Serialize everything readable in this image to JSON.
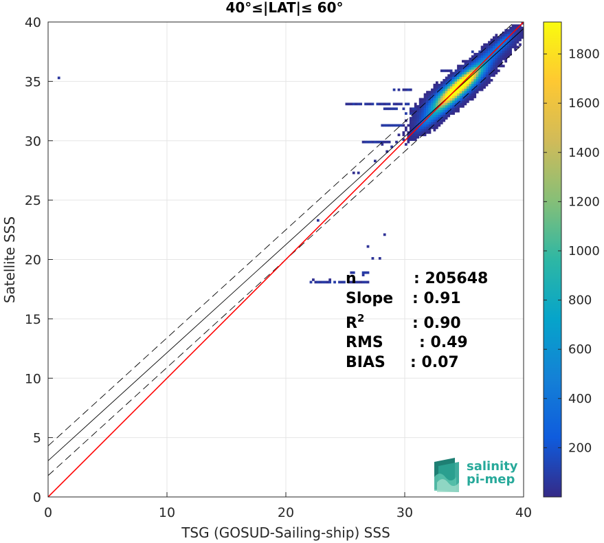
{
  "chart_data": {
    "type": "heatmap",
    "title": "40°≤|LAT|≤ 60°",
    "xlabel": "TSG (GOSUD-Sailing-ship) SSS",
    "ylabel": "Satellite SSS",
    "xlim": [
      0,
      40
    ],
    "ylim": [
      0,
      40
    ],
    "xticks": [
      "0",
      "10",
      "20",
      "30",
      "40"
    ],
    "yticks": [
      "0",
      "5",
      "10",
      "15",
      "20",
      "25",
      "30",
      "35",
      "40"
    ],
    "grid": true,
    "colorbar": {
      "range": [
        0,
        1930
      ],
      "ticks": [
        "200",
        "400",
        "600",
        "800",
        "1000",
        "1200",
        "1400",
        "1600",
        "1800"
      ],
      "colormap": "parula"
    },
    "lines": [
      {
        "kind": "one-to-one",
        "color": "#ff0000",
        "style": "solid",
        "points": [
          [
            0,
            0
          ],
          [
            40,
            40
          ]
        ]
      },
      {
        "kind": "regression",
        "color": "#000000",
        "style": "solid",
        "points": [
          [
            0,
            3.05
          ],
          [
            40,
            39.45
          ]
        ]
      },
      {
        "kind": "regression-upper",
        "color": "#000000",
        "style": "dashed",
        "points": [
          [
            0,
            4.3
          ],
          [
            40,
            40.7
          ]
        ]
      },
      {
        "kind": "regression-lower",
        "color": "#000000",
        "style": "dashed",
        "points": [
          [
            0,
            1.8
          ],
          [
            40,
            38.2
          ]
        ]
      }
    ],
    "stats": [
      {
        "label": "n",
        "value": ": 205648"
      },
      {
        "label": "Slope",
        "value": ": 0.91"
      },
      {
        "label": "R",
        "sup": "2",
        "value": ": 0.90"
      },
      {
        "label": "RMS",
        "value": ": 0.49"
      },
      {
        "label": "BIAS",
        "value": ": 0.07"
      }
    ],
    "density_clusters": [
      {
        "x": 34.3,
        "y": 34.3,
        "sx": 1.2,
        "sy": 1.0,
        "peak": 1900
      },
      {
        "x": 35.3,
        "y": 35.3,
        "sx": 0.9,
        "sy": 0.8,
        "peak": 1100
      },
      {
        "x": 33.2,
        "y": 33.0,
        "sx": 0.9,
        "sy": 0.9,
        "peak": 500
      },
      {
        "x": 37.5,
        "y": 37.5,
        "sx": 1.0,
        "sy": 0.8,
        "peak": 300
      },
      {
        "x": 38.3,
        "y": 38.4,
        "sx": 0.5,
        "sy": 0.5,
        "peak": 250
      },
      {
        "x": 31.8,
        "y": 31.6,
        "sx": 0.6,
        "sy": 0.6,
        "peak": 200
      }
    ],
    "sparse_points": [
      [
        0.8,
        35.3
      ],
      [
        22.3,
        18.3
      ],
      [
        23.6,
        18.3
      ],
      [
        22.6,
        23.4
      ],
      [
        26.5,
        18.6
      ],
      [
        28.2,
        22.0
      ],
      [
        27.4,
        20.2
      ],
      [
        27.8,
        20.2
      ],
      [
        26.8,
        21.2
      ],
      [
        28.5,
        29.0
      ],
      [
        28.0,
        29.6
      ],
      [
        25.6,
        27.2
      ],
      [
        26.0,
        27.4
      ],
      [
        27.5,
        28.3
      ],
      [
        29.4,
        29.9
      ],
      [
        28.8,
        29.5
      ],
      [
        30.0,
        29.6
      ],
      [
        29.5,
        30.5
      ],
      [
        31.0,
        30.6
      ],
      [
        31.3,
        31.2
      ]
    ],
    "streaks": [
      {
        "x0": 22.0,
        "x1": 26.8,
        "y": 18.0
      },
      {
        "x0": 25.5,
        "x1": 27.0,
        "y": 18.8
      },
      {
        "x0": 25.0,
        "x1": 30.3,
        "y": 33.1
      },
      {
        "x0": 27.8,
        "x1": 31.5,
        "y": 32.7
      },
      {
        "x0": 30.0,
        "x1": 32.0,
        "y": 32.2
      },
      {
        "x0": 29.0,
        "x1": 30.6,
        "y": 34.2
      },
      {
        "x0": 26.5,
        "x1": 28.6,
        "y": 29.9
      },
      {
        "x0": 28.0,
        "x1": 29.7,
        "y": 31.3
      },
      {
        "x0": 35.8,
        "x1": 38.0,
        "y": 37.5
      },
      {
        "x0": 33.0,
        "x1": 35.0,
        "y": 35.9
      }
    ]
  },
  "logo": {
    "line1": "salinity",
    "line2": "pi-mep"
  }
}
